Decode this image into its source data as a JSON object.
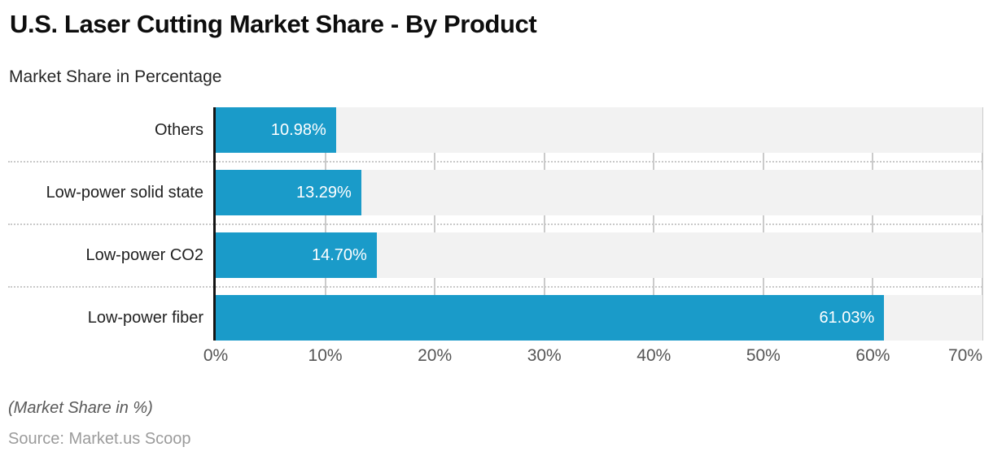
{
  "header": {
    "title": "U.S. Laser Cutting Market Share - By Product",
    "subtitle": "Market Share in Percentage"
  },
  "chart_data": {
    "type": "bar",
    "orientation": "horizontal",
    "title": "U.S. Laser Cutting Market Share - By Product",
    "subtitle": "Market Share in Percentage",
    "categories": [
      "Others",
      "Low-power solid state",
      "Low-power CO2",
      "Low-power fiber"
    ],
    "values": [
      10.98,
      13.29,
      14.7,
      61.03
    ],
    "value_labels": [
      "10.98%",
      "13.29%",
      "14.70%",
      "61.03%"
    ],
    "xlabel": "",
    "ylabel": "",
    "xlim": [
      0,
      70
    ],
    "x_ticks": [
      "0%",
      "10%",
      "20%",
      "30%",
      "40%",
      "50%",
      "60%",
      "70%"
    ],
    "grid": "vertical",
    "legend": "none",
    "colors": {
      "bar": "#1a9bc9",
      "band": "#f2f2f2",
      "gridline": "#cbcbcb",
      "separator": "#c9c9c9",
      "axis": "#141414",
      "bar_label_text": "#ffffff"
    }
  },
  "footer": {
    "note": "(Market Share in %)",
    "source": "Source: Market.us Scoop"
  }
}
